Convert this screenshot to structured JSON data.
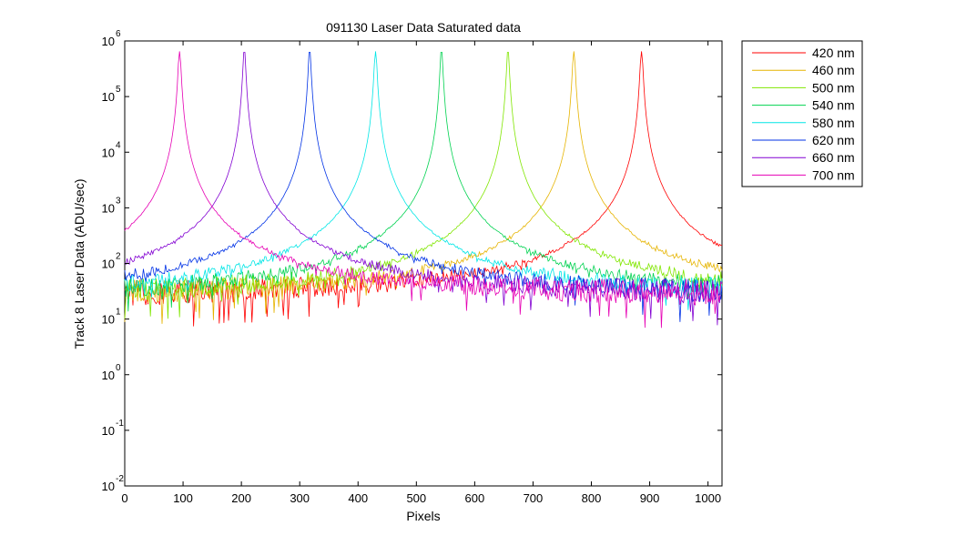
{
  "chart_data": {
    "type": "line",
    "title": "091130 Laser Data  Saturated data",
    "xlabel": "Pixels",
    "ylabel": "Track 8 Laser Data (ADU/sec)",
    "xlim": [
      0,
      1024
    ],
    "ylim": [
      0.01,
      1000000
    ],
    "yscale": "log",
    "grid": false,
    "legend_position": "outside-top-right",
    "x_ticks": [
      0,
      100,
      200,
      300,
      400,
      500,
      600,
      700,
      800,
      900,
      1000
    ],
    "x_tick_labels": [
      "0",
      "100",
      "200",
      "300",
      "400",
      "500",
      "600",
      "700",
      "800",
      "900",
      "1000"
    ],
    "y_ticks": [
      {
        "value": 0.01,
        "base": "10",
        "exp": "-2"
      },
      {
        "value": 0.1,
        "base": "10",
        "exp": "-1"
      },
      {
        "value": 1,
        "base": "10",
        "exp": "0"
      },
      {
        "value": 10,
        "base": "10",
        "exp": "1"
      },
      {
        "value": 100,
        "base": "10",
        "exp": "2"
      },
      {
        "value": 1000,
        "base": "10",
        "exp": "3"
      },
      {
        "value": 10000,
        "base": "10",
        "exp": "4"
      },
      {
        "value": 100000,
        "base": "10",
        "exp": "5"
      },
      {
        "value": 1000000,
        "base": "10",
        "exp": "6"
      }
    ],
    "series": [
      {
        "name": "420 nm",
        "color": "#ff0000",
        "peak_x": 886,
        "peak_y": 650000,
        "background": 25
      },
      {
        "name": "460 nm",
        "color": "#e6b400",
        "peak_x": 770,
        "peak_y": 650000,
        "background": 25
      },
      {
        "name": "500 nm",
        "color": "#80e600",
        "peak_x": 657,
        "peak_y": 650000,
        "background": 25
      },
      {
        "name": "540 nm",
        "color": "#00d250",
        "peak_x": 543,
        "peak_y": 650000,
        "background": 25
      },
      {
        "name": "580 nm",
        "color": "#00e6e6",
        "peak_x": 430,
        "peak_y": 650000,
        "background": 25
      },
      {
        "name": "620 nm",
        "color": "#0032e6",
        "peak_x": 317,
        "peak_y": 650000,
        "background": 25
      },
      {
        "name": "660 nm",
        "color": "#8200d2",
        "peak_x": 205,
        "peak_y": 650000,
        "background": 25
      },
      {
        "name": "700 nm",
        "color": "#e600b4",
        "peak_x": 94,
        "peak_y": 650000,
        "background": 25
      }
    ]
  }
}
